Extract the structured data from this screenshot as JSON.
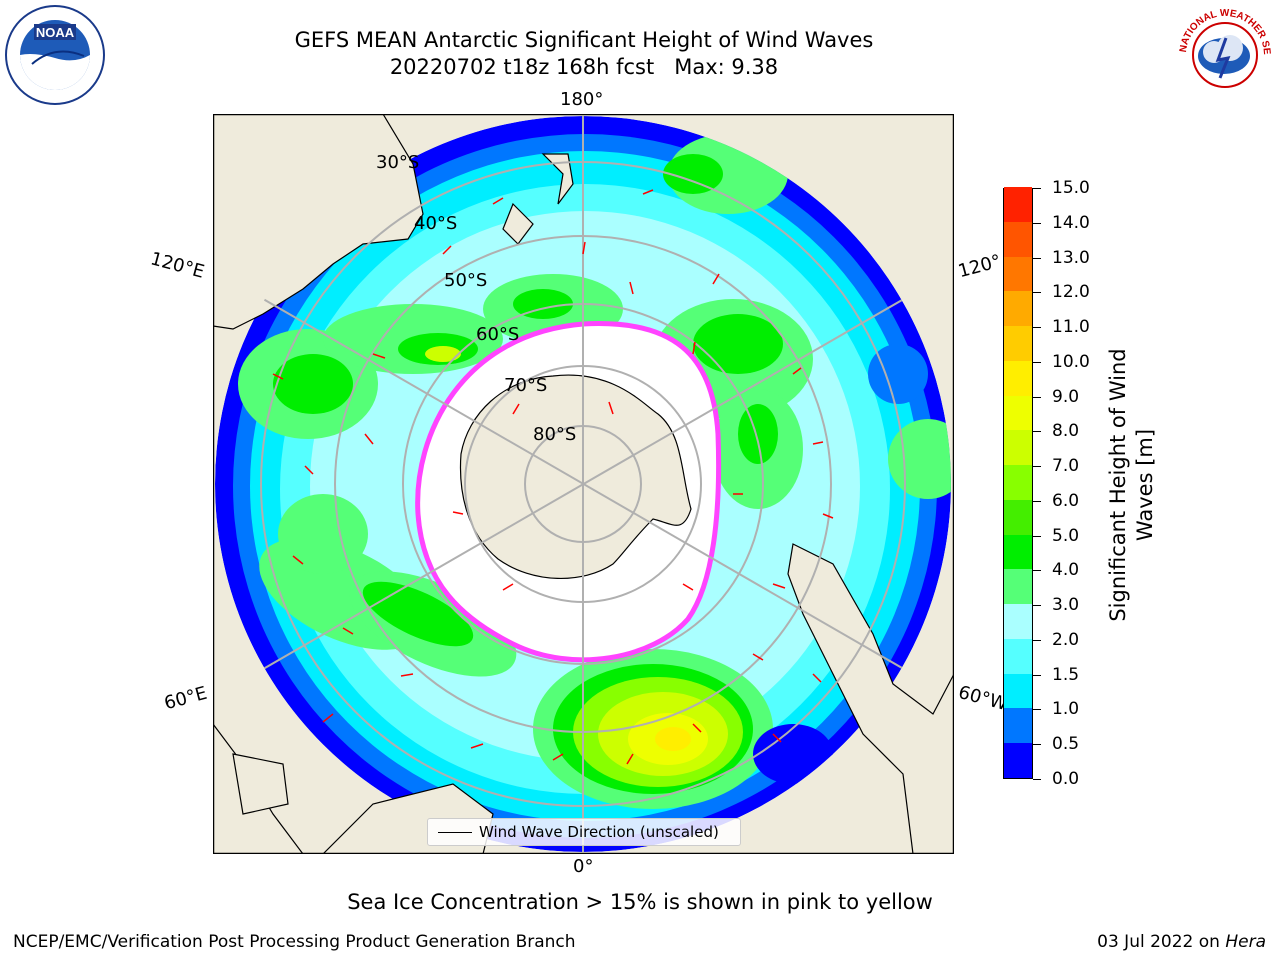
{
  "header": {
    "title_line1": "GEFS MEAN Antarctic Significant Height of Wind Waves",
    "title_line2": "20220702 t18z 168h fcst   Max: 9.38"
  },
  "logos": {
    "left": {
      "name": "noaa-logo",
      "text": "NOAA"
    },
    "right": {
      "name": "nws-logo",
      "text": "NATIONAL WEATHER SERVICE"
    }
  },
  "map": {
    "projection": "south-polar-stereographic",
    "lon_labels": {
      "top": "180°",
      "bottom": "0°",
      "left_upper": "120°E",
      "left_lower": "60°E",
      "right_upper": "120°",
      "right_lower": "60°W"
    },
    "lat_labels": [
      "30°S",
      "40°S",
      "50°S",
      "60°S",
      "70°S",
      "80°S"
    ],
    "legend_text": "Wind Wave Direction (unscaled)",
    "colors": {
      "land": "#efebdc",
      "ice_edge": "#ff44ff",
      "arrow": "#ff0000",
      "grid": "#b0b0b0"
    }
  },
  "colorbar": {
    "label": "Significant Height of Wind Waves [m]",
    "ticks": [
      "0.0",
      "0.5",
      "1.0",
      "1.5",
      "2.0",
      "3.0",
      "4.0",
      "5.0",
      "6.0",
      "7.0",
      "8.0",
      "9.0",
      "10.0",
      "11.0",
      "12.0",
      "13.0",
      "14.0",
      "15.0"
    ],
    "colors": [
      "#0000ff",
      "#0077ff",
      "#00eeff",
      "#55ffff",
      "#aaffff",
      "#55ff77",
      "#00ee00",
      "#44ee00",
      "#88ff00",
      "#ccff00",
      "#eeff00",
      "#ffee00",
      "#ffcc00",
      "#ffaa00",
      "#ff7700",
      "#ff5500",
      "#ff2200"
    ]
  },
  "footer": {
    "note": "Sea Ice Concentration > 15% is shown in pink to yellow",
    "credit": "NCEP/EMC/Verification Post Processing Product Generation Branch",
    "date_prefix": "03 Jul 2022 on ",
    "date_system": "Hera"
  }
}
